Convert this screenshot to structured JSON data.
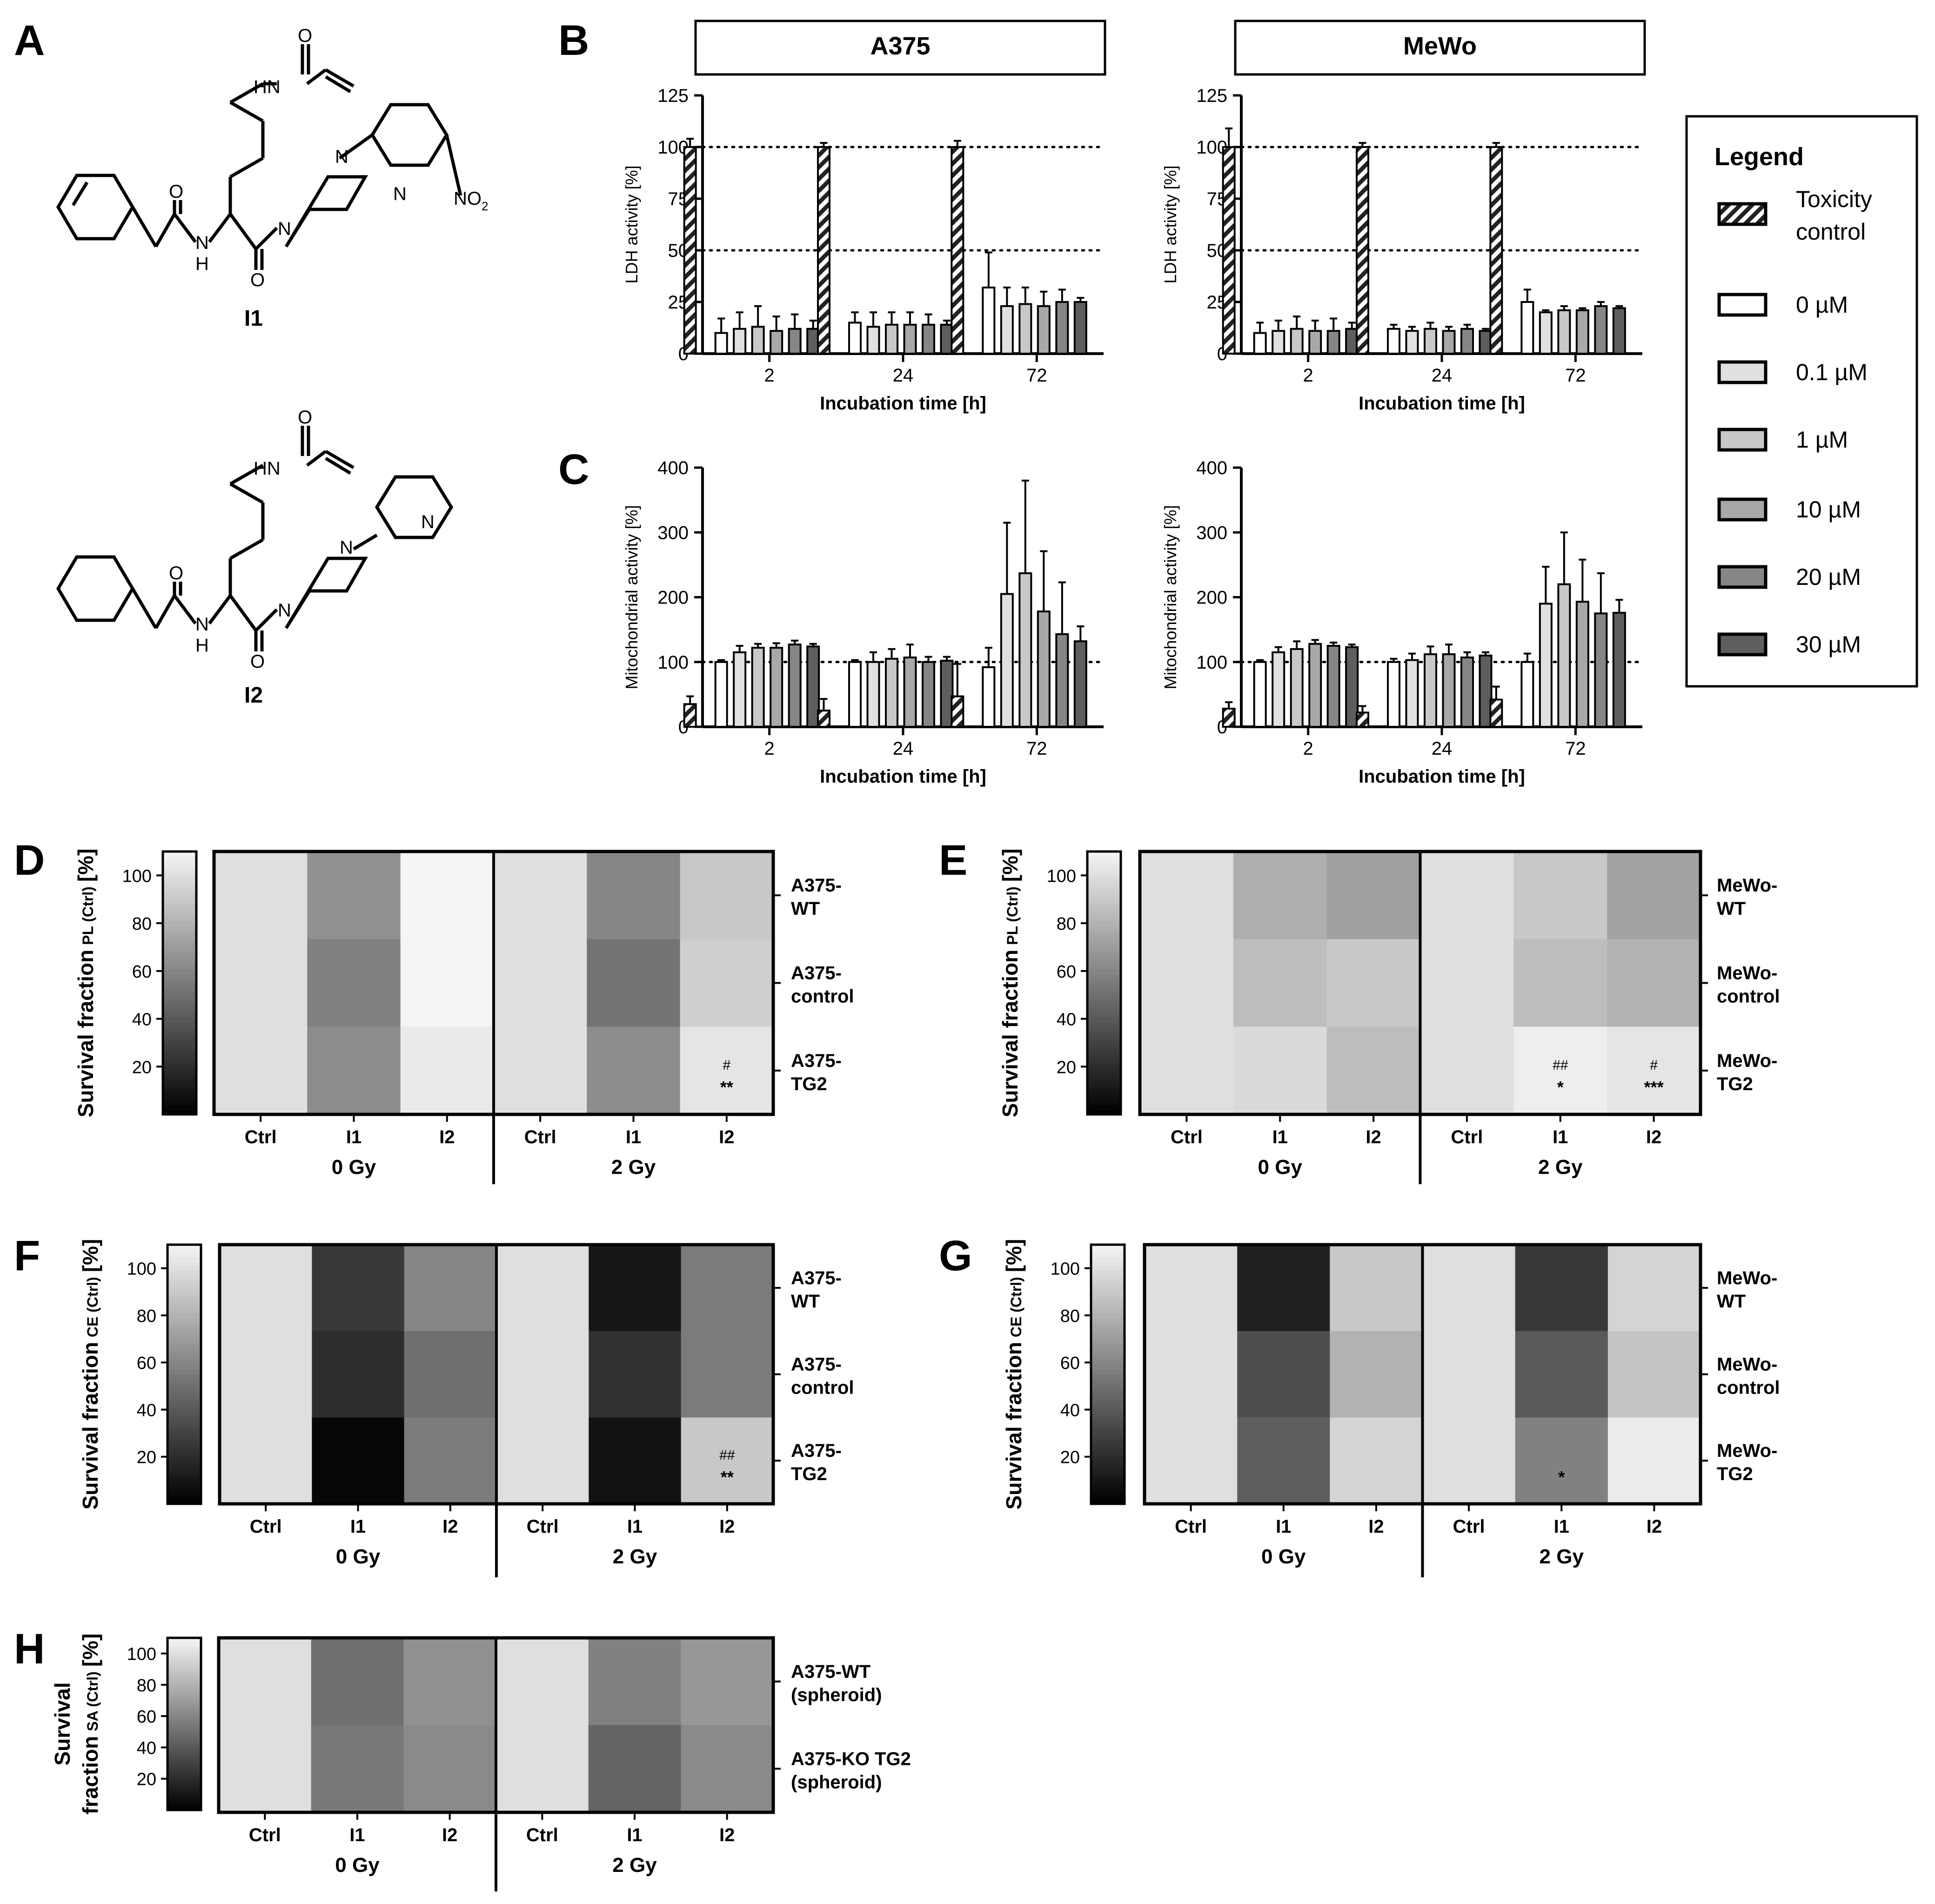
{
  "panels": {
    "A": "A",
    "B": "B",
    "C": "C",
    "D": "D",
    "E": "E",
    "F": "F",
    "G": "G",
    "H": "H"
  },
  "compounds": {
    "I1": {
      "name": "I1",
      "labels": [
        "HN",
        "O",
        "O",
        "N",
        "H",
        "O",
        "N",
        "N",
        "N",
        "NO",
        "2"
      ]
    },
    "I2": {
      "name": "I2",
      "labels": [
        "HN",
        "O",
        "O",
        "N",
        "H",
        "O",
        "N",
        "N",
        "N"
      ]
    }
  },
  "legend": {
    "title": "Legend",
    "items": [
      {
        "label1": "Toxicity",
        "label2": "control",
        "color": "#ffffff",
        "hatch": true
      },
      {
        "label1": "0 µM",
        "label2": "",
        "color": "#ffffff",
        "hatch": false
      },
      {
        "label1": "0.1 µM",
        "label2": "",
        "color": "#e0e0e0",
        "hatch": false
      },
      {
        "label1": "1 µM",
        "label2": "",
        "color": "#c8c8c8",
        "hatch": false
      },
      {
        "label1": "10 µM",
        "label2": "",
        "color": "#a8a8a8",
        "hatch": false
      },
      {
        "label1": "20 µM",
        "label2": "",
        "color": "#868686",
        "hatch": false
      },
      {
        "label1": "30 µM",
        "label2": "",
        "color": "#5e5e5e",
        "hatch": false
      }
    ]
  },
  "chart_data": [
    {
      "id": "B-A375",
      "panel": "B",
      "type": "bar",
      "title": "A375",
      "xlabel": "Incubation time [h]",
      "ylabel": "LDH activity [%]",
      "categories": [
        "2",
        "24",
        "72"
      ],
      "ylim": [
        0,
        125
      ],
      "yticks": [
        "0",
        "25",
        "50",
        "75",
        "100",
        "125"
      ],
      "reference_lines": [
        50,
        100
      ],
      "series": [
        {
          "name": "Toxicity control",
          "values": [
            100,
            100,
            100
          ],
          "errors": [
            4,
            2,
            3
          ]
        },
        {
          "name": "0 µM",
          "values": [
            10,
            15,
            32
          ],
          "errors": [
            7,
            5,
            17
          ]
        },
        {
          "name": "0.1 µM",
          "values": [
            12,
            13,
            23
          ],
          "errors": [
            8,
            7,
            9
          ]
        },
        {
          "name": "1 µM",
          "values": [
            13,
            14,
            24
          ],
          "errors": [
            10,
            6,
            8
          ]
        },
        {
          "name": "10 µM",
          "values": [
            11,
            14,
            23
          ],
          "errors": [
            7,
            6,
            7
          ]
        },
        {
          "name": "20 µM",
          "values": [
            12,
            14,
            25
          ],
          "errors": [
            7,
            5,
            6
          ]
        },
        {
          "name": "30 µM",
          "values": [
            12,
            14,
            25
          ],
          "errors": [
            4,
            2,
            2
          ]
        }
      ]
    },
    {
      "id": "B-MeWo",
      "panel": "B",
      "type": "bar",
      "title": "MeWo",
      "xlabel": "Incubation time [h]",
      "ylabel": "LDH activity [%]",
      "categories": [
        "2",
        "24",
        "72"
      ],
      "ylim": [
        0,
        125
      ],
      "yticks": [
        "0",
        "25",
        "50",
        "75",
        "100",
        "125"
      ],
      "reference_lines": [
        50,
        100
      ],
      "series": [
        {
          "name": "Toxicity control",
          "values": [
            100,
            100,
            100
          ],
          "errors": [
            9,
            2,
            2
          ]
        },
        {
          "name": "0 µM",
          "values": [
            10,
            12,
            25
          ],
          "errors": [
            5,
            2,
            6
          ]
        },
        {
          "name": "0.1 µM",
          "values": [
            11,
            11,
            20
          ],
          "errors": [
            5,
            2,
            1
          ]
        },
        {
          "name": "1 µM",
          "values": [
            12,
            12,
            21
          ],
          "errors": [
            6,
            3,
            2
          ]
        },
        {
          "name": "10 µM",
          "values": [
            11,
            11,
            21
          ],
          "errors": [
            5,
            2,
            1
          ]
        },
        {
          "name": "20 µM",
          "values": [
            11,
            12,
            23
          ],
          "errors": [
            6,
            2,
            2
          ]
        },
        {
          "name": "30 µM",
          "values": [
            12,
            11,
            22
          ],
          "errors": [
            3,
            1,
            1
          ]
        }
      ]
    },
    {
      "id": "C-A375",
      "panel": "C",
      "type": "bar",
      "title": "",
      "xlabel": "Incubation time [h]",
      "ylabel": "Mitochondrial activity [%]",
      "categories": [
        "2",
        "24",
        "72"
      ],
      "ylim": [
        0,
        400
      ],
      "yticks": [
        "0",
        "100",
        "200",
        "300",
        "400"
      ],
      "reference_lines": [
        100
      ],
      "series": [
        {
          "name": "Toxicity control",
          "values": [
            35,
            25,
            47
          ],
          "errors": [
            12,
            18,
            50
          ]
        },
        {
          "name": "0 µM",
          "values": [
            100,
            100,
            92
          ],
          "errors": [
            3,
            3,
            30
          ]
        },
        {
          "name": "0.1 µM",
          "values": [
            115,
            100,
            205
          ],
          "errors": [
            10,
            15,
            110
          ]
        },
        {
          "name": "1 µM",
          "values": [
            122,
            105,
            237
          ],
          "errors": [
            6,
            15,
            143
          ]
        },
        {
          "name": "10 µM",
          "values": [
            122,
            107,
            178
          ],
          "errors": [
            7,
            20,
            93
          ]
        },
        {
          "name": "20 µM",
          "values": [
            127,
            100,
            143
          ],
          "errors": [
            6,
            8,
            80
          ]
        },
        {
          "name": "30 µM",
          "values": [
            124,
            102,
            132
          ],
          "errors": [
            4,
            6,
            23
          ]
        }
      ]
    },
    {
      "id": "C-MeWo",
      "panel": "C",
      "type": "bar",
      "title": "",
      "xlabel": "Incubation time [h]",
      "ylabel": "Mitochondrial activity [%]",
      "categories": [
        "2",
        "24",
        "72"
      ],
      "ylim": [
        0,
        400
      ],
      "yticks": [
        "0",
        "100",
        "200",
        "300",
        "400"
      ],
      "reference_lines": [
        100
      ],
      "series": [
        {
          "name": "Toxicity control",
          "values": [
            28,
            22,
            42
          ],
          "errors": [
            10,
            10,
            20
          ]
        },
        {
          "name": "0 µM",
          "values": [
            100,
            100,
            100
          ],
          "errors": [
            3,
            5,
            13
          ]
        },
        {
          "name": "0.1 µM",
          "values": [
            115,
            103,
            190
          ],
          "errors": [
            8,
            10,
            57
          ]
        },
        {
          "name": "1 µM",
          "values": [
            120,
            112,
            220
          ],
          "errors": [
            12,
            12,
            80
          ]
        },
        {
          "name": "10 µM",
          "values": [
            128,
            112,
            193
          ],
          "errors": [
            6,
            15,
            65
          ]
        },
        {
          "name": "20 µM",
          "values": [
            125,
            107,
            175
          ],
          "errors": [
            5,
            8,
            62
          ]
        },
        {
          "name": "30 µM",
          "values": [
            123,
            110,
            176
          ],
          "errors": [
            4,
            5,
            20
          ]
        }
      ]
    },
    {
      "id": "D",
      "panel": "D",
      "type": "heatmap",
      "colorbar_label": "Survival fraction",
      "colorbar_sub": "PL (Ctrl)",
      "colorbar_unit": "[%]",
      "colorbar_ticks": [
        "20",
        "40",
        "60",
        "80",
        "100"
      ],
      "colorbar_range": [
        0,
        110
      ],
      "columns": [
        "Ctrl",
        "I1",
        "I2",
        "Ctrl",
        "I1",
        "I2"
      ],
      "groups": [
        "0 Gy",
        "2 Gy"
      ],
      "rows": [
        [
          "A375-",
          "WT"
        ],
        [
          "A375-",
          "control"
        ],
        [
          "A375-",
          "TG2"
        ]
      ],
      "values": [
        [
          100,
          65,
          116,
          100,
          60,
          90
        ],
        [
          100,
          58,
          116,
          100,
          52,
          93
        ],
        [
          100,
          63,
          105,
          100,
          63,
          103
        ]
      ],
      "annotations": [
        {
          "row": 2,
          "col": 5,
          "top": "#",
          "bottom": "**"
        }
      ]
    },
    {
      "id": "E",
      "panel": "E",
      "type": "heatmap",
      "colorbar_label": "Survival fraction",
      "colorbar_sub": "PL (Ctrl)",
      "colorbar_unit": "[%]",
      "colorbar_ticks": [
        "20",
        "40",
        "60",
        "80",
        "100"
      ],
      "colorbar_range": [
        0,
        110
      ],
      "columns": [
        "Ctrl",
        "I1",
        "I2",
        "Ctrl",
        "I1",
        "I2"
      ],
      "groups": [
        "0 Gy",
        "2 Gy"
      ],
      "rows": [
        [
          "MeWo-",
          "WT"
        ],
        [
          "MeWo-",
          "control"
        ],
        [
          "MeWo-",
          "TG2"
        ]
      ],
      "values": [
        [
          100,
          78,
          72,
          100,
          90,
          73
        ],
        [
          100,
          85,
          90,
          100,
          85,
          80
        ],
        [
          100,
          98,
          85,
          100,
          107,
          103
        ]
      ],
      "annotations": [
        {
          "row": 2,
          "col": 4,
          "top": "##",
          "bottom": "*"
        },
        {
          "row": 2,
          "col": 5,
          "top": "#",
          "bottom": "***"
        }
      ]
    },
    {
      "id": "F",
      "panel": "F",
      "type": "heatmap",
      "colorbar_label": "Survival fraction",
      "colorbar_sub": "CE (Ctrl)",
      "colorbar_unit": "[%]",
      "colorbar_ticks": [
        "20",
        "40",
        "60",
        "80",
        "100"
      ],
      "colorbar_range": [
        0,
        110
      ],
      "columns": [
        "Ctrl",
        "I1",
        "I2",
        "Ctrl",
        "I1",
        "I2"
      ],
      "groups": [
        "0 Gy",
        "2 Gy"
      ],
      "rows": [
        [
          "A375-",
          "WT"
        ],
        [
          "A375-",
          "control"
        ],
        [
          "A375-",
          "TG2"
        ]
      ],
      "values": [
        [
          100,
          25,
          60,
          100,
          10,
          55
        ],
        [
          100,
          20,
          50,
          100,
          22,
          55
        ],
        [
          100,
          3,
          55,
          100,
          8,
          90
        ]
      ],
      "annotations": [
        {
          "row": 2,
          "col": 5,
          "top": "##",
          "bottom": "**"
        }
      ]
    },
    {
      "id": "G",
      "panel": "G",
      "type": "heatmap",
      "colorbar_label": "Survival fraction",
      "colorbar_sub": "CE (Ctrl)",
      "colorbar_unit": "[%]",
      "colorbar_ticks": [
        "20",
        "40",
        "60",
        "80",
        "100"
      ],
      "colorbar_range": [
        0,
        110
      ],
      "columns": [
        "Ctrl",
        "I1",
        "I2",
        "Ctrl",
        "I1",
        "I2"
      ],
      "groups": [
        "0 Gy",
        "2 Gy"
      ],
      "rows": [
        [
          "MeWo-",
          "WT"
        ],
        [
          "MeWo-",
          "control"
        ],
        [
          "MeWo-",
          "TG2"
        ]
      ],
      "values": [
        [
          100,
          15,
          90,
          100,
          25,
          95
        ],
        [
          100,
          35,
          80,
          100,
          40,
          88
        ],
        [
          100,
          42,
          95,
          100,
          58,
          106
        ]
      ],
      "annotations": [
        {
          "row": 2,
          "col": 4,
          "top": "",
          "bottom": "*"
        }
      ]
    },
    {
      "id": "H",
      "panel": "H",
      "type": "heatmap",
      "colorbar_label": "Survival",
      "colorbar_label2": "fraction",
      "colorbar_sub": "SA (Ctrl)",
      "colorbar_unit": "[%]",
      "colorbar_ticks": [
        "20",
        "40",
        "60",
        "80",
        "100"
      ],
      "colorbar_range": [
        0,
        110
      ],
      "columns": [
        "Ctrl",
        "I1",
        "I2",
        "Ctrl",
        "I1",
        "I2"
      ],
      "groups": [
        "0 Gy",
        "2 Gy"
      ],
      "rows": [
        [
          "A375-WT",
          "(spheroid)"
        ],
        [
          "A375-KO TG2",
          "(spheroid)"
        ]
      ],
      "values": [
        [
          100,
          50,
          65,
          100,
          58,
          68
        ],
        [
          100,
          54,
          62,
          100,
          45,
          62
        ]
      ],
      "annotations": []
    }
  ]
}
